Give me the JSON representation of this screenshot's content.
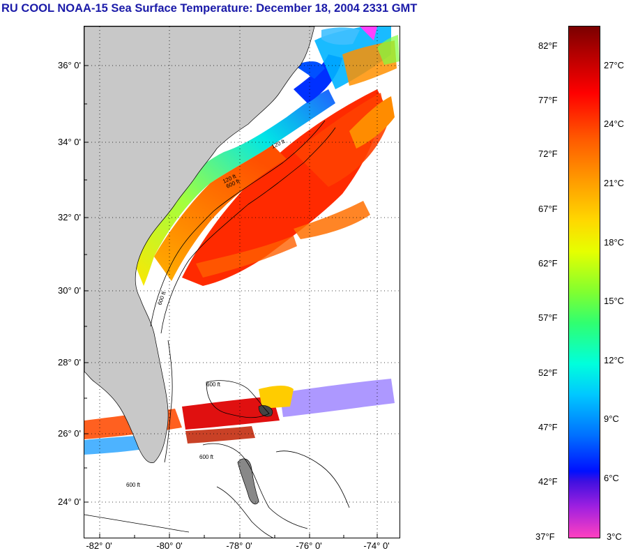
{
  "title": "RU COOL  NOAA-15  Sea Surface Temperature:  December 18, 2004 2331 GMT",
  "map": {
    "lat_labels": [
      "36° 0'",
      "34° 0'",
      "32° 0'",
      "30° 0'",
      "28° 0'",
      "26° 0'",
      "24° 0'"
    ],
    "lon_labels": [
      "-82° 0'",
      "-80° 0'",
      "-78° 0'",
      "-76° 0'",
      "-74° 0'"
    ],
    "contour_labels": [
      "120 ft",
      "600 ft",
      "120 ft",
      "600 ft",
      "600 ft",
      "600 ft",
      "600 ft"
    ]
  },
  "colorbar": {
    "fahrenheit_labels": [
      "82°F",
      "77°F",
      "72°F",
      "67°F",
      "62°F",
      "57°F",
      "52°F",
      "47°F",
      "42°F",
      "37°F"
    ],
    "celsius_labels": [
      "27°C",
      "24°C",
      "21°C",
      "18°C",
      "15°C",
      "12°C",
      "9°C",
      "6°C",
      "3°C"
    ]
  },
  "colors": {
    "title": "#1a1aa8",
    "land": "#c8c8c8"
  }
}
